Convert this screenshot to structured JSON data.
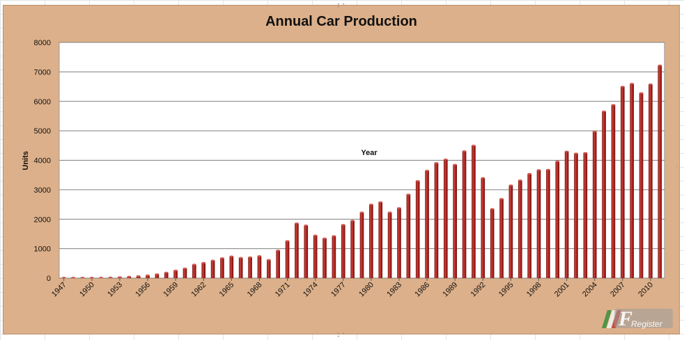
{
  "window": {
    "app": "spreadsheet"
  },
  "chart_data": {
    "type": "bar",
    "title": "Annual Car Production",
    "xlabel": "Year",
    "ylabel": "Units",
    "ylim": [
      0,
      8000
    ],
    "yticks": [
      0,
      1000,
      2000,
      3000,
      4000,
      5000,
      6000,
      7000,
      8000
    ],
    "grid": "horizontal",
    "legend": "none",
    "bar_color": "#b3241f",
    "categories": [
      1947,
      1948,
      1949,
      1950,
      1951,
      1952,
      1953,
      1954,
      1955,
      1956,
      1957,
      1958,
      1959,
      1960,
      1961,
      1962,
      1963,
      1964,
      1965,
      1966,
      1967,
      1968,
      1969,
      1970,
      1971,
      1972,
      1973,
      1974,
      1975,
      1976,
      1977,
      1978,
      1979,
      1980,
      1981,
      1982,
      1983,
      1984,
      1985,
      1986,
      1987,
      1988,
      1989,
      1990,
      1991,
      1992,
      1993,
      1994,
      1995,
      1996,
      1997,
      1998,
      1999,
      2000,
      2001,
      2002,
      2003,
      2004,
      2005,
      2006,
      2007,
      2008,
      2009,
      2010,
      2011
    ],
    "tick_labels": [
      "1947",
      "1950",
      "1953",
      "1956",
      "1959",
      "1962",
      "1965",
      "1968",
      "1971",
      "1974",
      "1977",
      "1980",
      "1983",
      "1986",
      "1989",
      "1992",
      "1995",
      "1998",
      "2001",
      "2004",
      "2007",
      "2010"
    ],
    "values": [
      3,
      5,
      8,
      12,
      18,
      25,
      35,
      50,
      70,
      95,
      135,
      190,
      260,
      330,
      460,
      520,
      600,
      680,
      740,
      690,
      710,
      750,
      620,
      940,
      1260,
      1860,
      1790,
      1450,
      1350,
      1430,
      1810,
      1950,
      2230,
      2500,
      2580,
      2230,
      2380,
      2840,
      3300,
      3650,
      3910,
      4030,
      3850,
      4310,
      4500,
      3400,
      2350,
      2690,
      3150,
      3320,
      3540,
      3670,
      3680,
      3960,
      4300,
      4230,
      4250,
      4980,
      5660,
      5880,
      6500,
      6600,
      6280,
      6580,
      7220
    ]
  },
  "watermark": {
    "text": "Register",
    "logo_letter": "F"
  }
}
